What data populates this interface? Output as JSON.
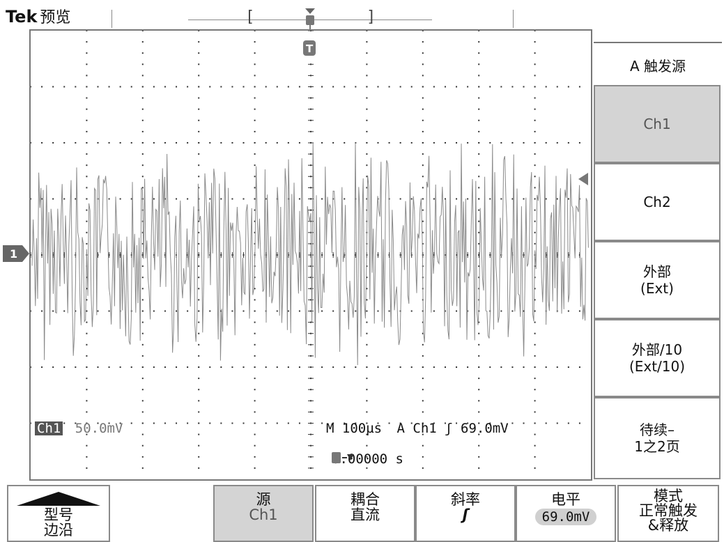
{
  "header": {
    "brand": "Tek",
    "mode": "预览"
  },
  "side_menu": {
    "title": "A 触发源",
    "items": [
      {
        "label": "Ch1",
        "selected": true
      },
      {
        "label": "Ch2",
        "selected": false
      },
      {
        "label": "外部",
        "sub": "(Ext)",
        "selected": false
      },
      {
        "label": "外部/10",
        "sub": "(Ext/10)",
        "selected": false
      },
      {
        "label": "待续–",
        "sub": "1之2页",
        "selected": false
      }
    ]
  },
  "bottom_menu": [
    {
      "label": "型号",
      "sub": "边沿",
      "selected": false
    },
    {
      "label": "",
      "sub": "",
      "selected": false
    },
    {
      "label": "源",
      "sub": "Ch1",
      "selected": true
    },
    {
      "label": "耦合",
      "sub": "直流",
      "selected": false
    },
    {
      "label": "斜率",
      "sub": "ʃ",
      "selected": false
    },
    {
      "label": "电平",
      "sub": "69.0mV",
      "selected": false
    },
    {
      "label": "模式",
      "sub": "正常触发",
      "sub2": "&释放",
      "selected": false
    }
  ],
  "readouts": {
    "channel": "Ch1",
    "scale": "50.0mV",
    "timebase": "M 100µs",
    "trigger": "A  Ch1  ʃ  69.0mV",
    "position": "0.00000 s"
  },
  "markers": {
    "trigger_marker": "T",
    "ground_marker": "1"
  }
}
